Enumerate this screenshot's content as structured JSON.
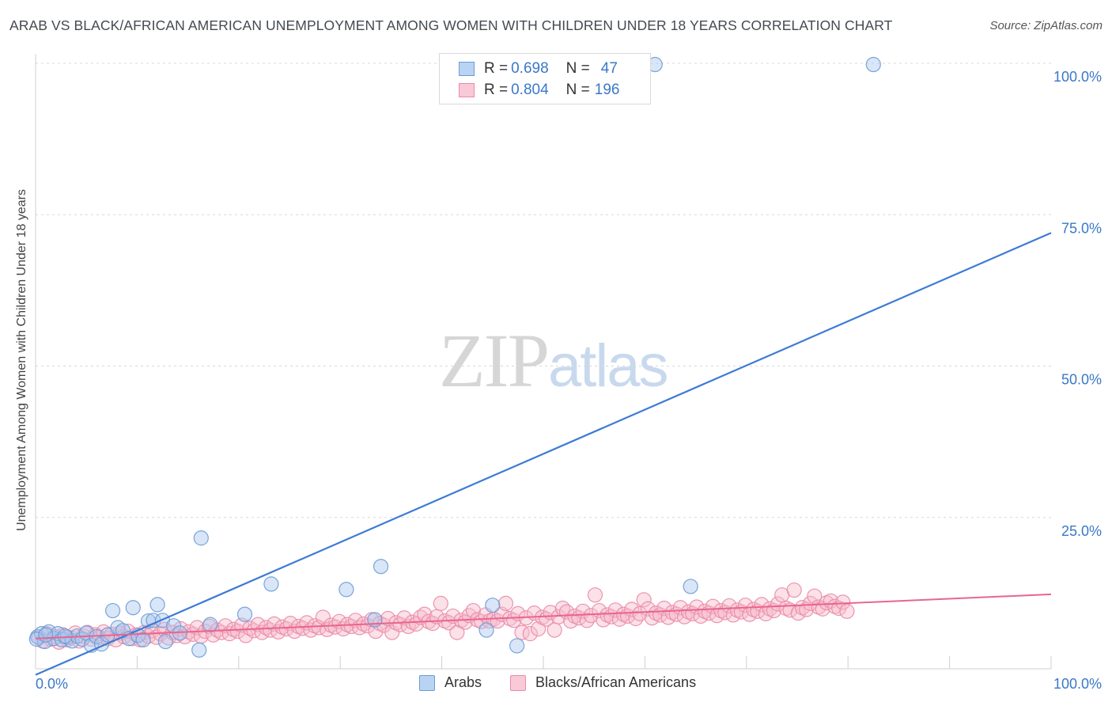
{
  "title": "ARAB VS BLACK/AFRICAN AMERICAN UNEMPLOYMENT AMONG WOMEN WITH CHILDREN UNDER 18 YEARS CORRELATION CHART",
  "source": "Source: ZipAtlas.com",
  "watermark": {
    "zip": "ZIP",
    "atlas": "atlas"
  },
  "legend": {
    "arabs": {
      "r_label": "R = ",
      "r_value": "0.698",
      "n_label": "N = ",
      "n_value": "47"
    },
    "blacks": {
      "r_label": "R = ",
      "r_value": "0.804",
      "n_label": "N = ",
      "n_value": "196"
    }
  },
  "colors": {
    "arabs_fill": "#aac8f0",
    "arabs_stroke": "#6b9bd6",
    "arabs_line": "#3d7bd4",
    "blacks_fill": "#f7bccd",
    "blacks_stroke": "#ea8aa8",
    "blacks_line": "#e8658f",
    "tick_text": "#3a78c8",
    "grid": "#d8d8d8"
  },
  "chart_data": {
    "type": "scatter",
    "title": "ARAB VS BLACK/AFRICAN AMERICAN UNEMPLOYMENT AMONG WOMEN WITH CHILDREN UNDER 18 YEARS CORRELATION CHART",
    "xlabel": "",
    "ylabel": "Unemployment Among Women with Children Under 18 years",
    "xlim": [
      0,
      100
    ],
    "ylim": [
      0,
      100
    ],
    "x_tick_labels": [
      "0.0%",
      "100.0%"
    ],
    "y_tick_labels": [
      "100.0%",
      "75.0%",
      "50.0%",
      "25.0%"
    ],
    "y_tick_values": [
      100,
      75,
      50,
      25
    ],
    "grid": true,
    "legend_position": "bottom-center",
    "series": [
      {
        "name": "Arabs",
        "r": 0.698,
        "n": 47,
        "trend": {
          "x": [
            0,
            100
          ],
          "y": [
            -1,
            72
          ]
        },
        "points": [
          [
            0.2,
            5.3
          ],
          [
            0.6,
            5.8
          ],
          [
            0.9,
            4.5
          ],
          [
            1.3,
            6.1
          ],
          [
            1.8,
            5.0
          ],
          [
            2.2,
            5.8
          ],
          [
            2.6,
            4.8
          ],
          [
            3.1,
            5.2
          ],
          [
            3.6,
            4.6
          ],
          [
            4.1,
            5.4
          ],
          [
            4.6,
            4.9
          ],
          [
            5.0,
            5.9
          ],
          [
            5.5,
            3.9
          ],
          [
            6.0,
            5.3
          ],
          [
            6.5,
            4.1
          ],
          [
            7.1,
            5.6
          ],
          [
            7.6,
            9.6
          ],
          [
            8.1,
            6.8
          ],
          [
            8.6,
            6.3
          ],
          [
            9.2,
            5.0
          ],
          [
            9.6,
            10.1
          ],
          [
            10.1,
            5.5
          ],
          [
            10.6,
            4.8
          ],
          [
            11.1,
            7.9
          ],
          [
            11.6,
            8.0
          ],
          [
            12.0,
            10.6
          ],
          [
            12.5,
            8.0
          ],
          [
            12.8,
            4.5
          ],
          [
            13.6,
            7.1
          ],
          [
            14.2,
            5.9
          ],
          [
            16.1,
            3.1
          ],
          [
            16.3,
            21.6
          ],
          [
            17.2,
            7.3
          ],
          [
            20.6,
            9.0
          ],
          [
            23.2,
            14.0
          ],
          [
            30.6,
            13.1
          ],
          [
            33.4,
            8.1
          ],
          [
            34.0,
            16.9
          ],
          [
            44.4,
            6.4
          ],
          [
            45.0,
            10.5
          ],
          [
            47.4,
            3.8
          ],
          [
            61.0,
            99.8
          ],
          [
            64.5,
            13.6
          ],
          [
            82.5,
            99.8
          ],
          [
            0.1,
            4.9
          ],
          [
            1.0,
            5.6
          ],
          [
            2.9,
            5.4
          ]
        ]
      },
      {
        "name": "Blacks/African Americans",
        "r": 0.804,
        "n": 196,
        "trend": {
          "x": [
            0,
            100
          ],
          "y": [
            5.0,
            12.3
          ]
        },
        "points": [
          [
            0.3,
            5.2
          ],
          [
            0.7,
            4.6
          ],
          [
            1.1,
            5.8
          ],
          [
            1.5,
            4.9
          ],
          [
            1.9,
            5.3
          ],
          [
            2.3,
            4.4
          ],
          [
            2.7,
            5.6
          ],
          [
            3.1,
            4.8
          ],
          [
            3.5,
            5.1
          ],
          [
            3.9,
            5.9
          ],
          [
            4.3,
            4.6
          ],
          [
            4.7,
            5.4
          ],
          [
            5.1,
            6.0
          ],
          [
            5.5,
            4.9
          ],
          [
            5.9,
            5.6
          ],
          [
            6.3,
            5.2
          ],
          [
            6.7,
            6.1
          ],
          [
            7.1,
            5.0
          ],
          [
            7.5,
            5.7
          ],
          [
            7.9,
            4.8
          ],
          [
            8.3,
            5.9
          ],
          [
            8.7,
            5.3
          ],
          [
            9.1,
            6.2
          ],
          [
            9.5,
            5.0
          ],
          [
            9.9,
            5.6
          ],
          [
            10.3,
            4.8
          ],
          [
            10.7,
            6.0
          ],
          [
            11.1,
            5.4
          ],
          [
            11.5,
            6.3
          ],
          [
            11.9,
            5.2
          ],
          [
            12.3,
            5.8
          ],
          [
            12.7,
            6.5
          ],
          [
            13.1,
            5.1
          ],
          [
            13.5,
            6.0
          ],
          [
            13.9,
            5.5
          ],
          [
            14.3,
            6.6
          ],
          [
            14.7,
            5.3
          ],
          [
            15.1,
            6.1
          ],
          [
            15.5,
            5.7
          ],
          [
            15.9,
            6.8
          ],
          [
            16.3,
            5.4
          ],
          [
            16.7,
            6.2
          ],
          [
            17.1,
            7.0
          ],
          [
            17.5,
            5.6
          ],
          [
            17.9,
            6.4
          ],
          [
            18.3,
            6.0
          ],
          [
            18.7,
            7.1
          ],
          [
            19.1,
            5.8
          ],
          [
            19.5,
            6.5
          ],
          [
            19.9,
            6.2
          ],
          [
            20.3,
            7.2
          ],
          [
            20.7,
            5.5
          ],
          [
            21.1,
            6.7
          ],
          [
            21.5,
            6.3
          ],
          [
            21.9,
            7.3
          ],
          [
            22.3,
            6.0
          ],
          [
            22.7,
            6.8
          ],
          [
            23.1,
            6.4
          ],
          [
            23.5,
            7.4
          ],
          [
            23.9,
            6.1
          ],
          [
            24.3,
            6.9
          ],
          [
            24.7,
            6.6
          ],
          [
            25.1,
            7.5
          ],
          [
            25.5,
            6.2
          ],
          [
            25.9,
            7.0
          ],
          [
            26.3,
            6.7
          ],
          [
            26.7,
            7.6
          ],
          [
            27.1,
            6.4
          ],
          [
            27.5,
            7.1
          ],
          [
            27.9,
            6.8
          ],
          [
            28.3,
            8.5
          ],
          [
            28.7,
            6.5
          ],
          [
            29.1,
            7.2
          ],
          [
            29.5,
            6.9
          ],
          [
            29.9,
            7.8
          ],
          [
            30.3,
            6.6
          ],
          [
            30.7,
            7.3
          ],
          [
            31.1,
            7.0
          ],
          [
            31.5,
            8.0
          ],
          [
            31.9,
            6.8
          ],
          [
            32.3,
            7.4
          ],
          [
            32.7,
            7.1
          ],
          [
            33.1,
            8.1
          ],
          [
            33.5,
            6.2
          ],
          [
            33.9,
            7.5
          ],
          [
            34.3,
            7.2
          ],
          [
            34.7,
            8.3
          ],
          [
            35.1,
            6.0
          ],
          [
            35.5,
            7.6
          ],
          [
            35.9,
            7.3
          ],
          [
            36.3,
            8.4
          ],
          [
            36.7,
            7.0
          ],
          [
            37.1,
            7.7
          ],
          [
            37.5,
            7.4
          ],
          [
            37.9,
            8.5
          ],
          [
            38.3,
            9.0
          ],
          [
            38.7,
            7.8
          ],
          [
            39.1,
            7.5
          ],
          [
            39.5,
            8.6
          ],
          [
            39.9,
            10.8
          ],
          [
            40.3,
            7.9
          ],
          [
            40.7,
            7.6
          ],
          [
            41.1,
            8.7
          ],
          [
            41.5,
            6.0
          ],
          [
            41.9,
            8.0
          ],
          [
            42.3,
            7.7
          ],
          [
            42.7,
            8.8
          ],
          [
            43.1,
            9.6
          ],
          [
            43.5,
            8.1
          ],
          [
            43.9,
            7.8
          ],
          [
            44.3,
            8.9
          ],
          [
            44.7,
            7.9
          ],
          [
            45.1,
            8.2
          ],
          [
            45.5,
            7.9
          ],
          [
            45.9,
            9.0
          ],
          [
            46.3,
            10.8
          ],
          [
            46.7,
            8.3
          ],
          [
            47.1,
            8.0
          ],
          [
            47.5,
            9.1
          ],
          [
            47.9,
            6.0
          ],
          [
            48.3,
            8.4
          ],
          [
            48.7,
            5.8
          ],
          [
            49.1,
            9.2
          ],
          [
            49.5,
            6.6
          ],
          [
            49.9,
            8.5
          ],
          [
            50.3,
            8.2
          ],
          [
            50.7,
            9.3
          ],
          [
            51.1,
            6.4
          ],
          [
            51.5,
            8.6
          ],
          [
            51.9,
            10.0
          ],
          [
            52.3,
            9.4
          ],
          [
            52.7,
            7.9
          ],
          [
            53.1,
            8.7
          ],
          [
            53.5,
            8.4
          ],
          [
            53.9,
            9.5
          ],
          [
            54.3,
            8.0
          ],
          [
            54.7,
            8.8
          ],
          [
            55.1,
            12.2
          ],
          [
            55.5,
            9.6
          ],
          [
            55.9,
            8.1
          ],
          [
            56.3,
            8.9
          ],
          [
            56.7,
            8.6
          ],
          [
            57.1,
            9.7
          ],
          [
            57.5,
            8.2
          ],
          [
            57.9,
            9.0
          ],
          [
            58.3,
            8.7
          ],
          [
            58.7,
            9.8
          ],
          [
            59.1,
            8.3
          ],
          [
            59.5,
            9.1
          ],
          [
            59.9,
            11.4
          ],
          [
            60.3,
            9.9
          ],
          [
            60.7,
            8.4
          ],
          [
            61.1,
            9.2
          ],
          [
            61.5,
            8.9
          ],
          [
            61.9,
            10.0
          ],
          [
            62.3,
            8.5
          ],
          [
            62.7,
            9.3
          ],
          [
            63.1,
            9.0
          ],
          [
            63.5,
            10.1
          ],
          [
            63.9,
            8.6
          ],
          [
            64.3,
            9.4
          ],
          [
            64.7,
            9.1
          ],
          [
            65.1,
            10.2
          ],
          [
            65.5,
            8.7
          ],
          [
            65.9,
            9.5
          ],
          [
            66.3,
            9.2
          ],
          [
            66.7,
            10.3
          ],
          [
            67.1,
            8.8
          ],
          [
            67.5,
            9.6
          ],
          [
            67.9,
            9.3
          ],
          [
            68.3,
            10.4
          ],
          [
            68.7,
            8.9
          ],
          [
            69.1,
            9.7
          ],
          [
            69.5,
            9.4
          ],
          [
            69.9,
            10.5
          ],
          [
            70.3,
            9.0
          ],
          [
            70.7,
            9.8
          ],
          [
            71.1,
            9.5
          ],
          [
            71.5,
            10.6
          ],
          [
            71.9,
            9.1
          ],
          [
            72.3,
            9.9
          ],
          [
            72.7,
            9.6
          ],
          [
            73.1,
            10.7
          ],
          [
            73.5,
            12.2
          ],
          [
            73.9,
            10.0
          ],
          [
            74.3,
            9.7
          ],
          [
            74.7,
            13.0
          ],
          [
            75.1,
            9.2
          ],
          [
            75.5,
            10.1
          ],
          [
            75.9,
            9.8
          ],
          [
            76.3,
            10.8
          ],
          [
            76.7,
            12.0
          ],
          [
            77.1,
            10.2
          ],
          [
            77.5,
            9.9
          ],
          [
            77.9,
            10.9
          ],
          [
            78.3,
            11.2
          ],
          [
            78.7,
            10.3
          ],
          [
            79.1,
            10.0
          ],
          [
            79.5,
            11.0
          ],
          [
            79.9,
            9.5
          ]
        ]
      }
    ]
  }
}
